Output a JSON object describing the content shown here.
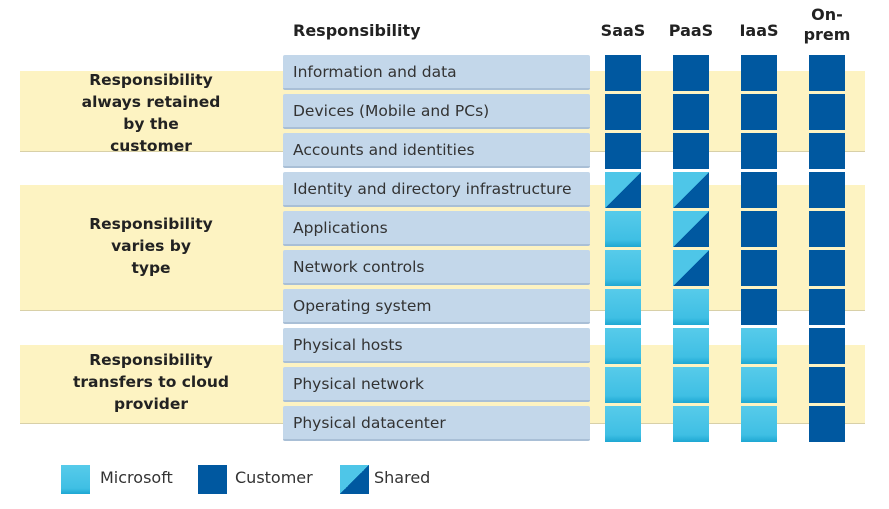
{
  "header": {
    "responsibility": "Responsibility",
    "columns": [
      "SaaS",
      "PaaS",
      "IaaS",
      "On-\nprem"
    ]
  },
  "bands": [
    {
      "label": "Responsibility always retained by the customer"
    },
    {
      "label": "Responsibility varies by type"
    },
    {
      "label": "Responsibility transfers to cloud provider"
    }
  ],
  "rows": [
    {
      "label": "Information and data",
      "cells": [
        "C",
        "C",
        "C",
        "C"
      ]
    },
    {
      "label": "Devices (Mobile and PCs)",
      "cells": [
        "C",
        "C",
        "C",
        "C"
      ]
    },
    {
      "label": "Accounts and identities",
      "cells": [
        "C",
        "C",
        "C",
        "C"
      ]
    },
    {
      "label": "Identity and directory infrastructure",
      "cells": [
        "S",
        "S",
        "C",
        "C"
      ]
    },
    {
      "label": "Applications",
      "cells": [
        "M",
        "S",
        "C",
        "C"
      ]
    },
    {
      "label": "Network controls",
      "cells": [
        "M",
        "S",
        "C",
        "C"
      ]
    },
    {
      "label": "Operating system",
      "cells": [
        "M",
        "M",
        "C",
        "C"
      ]
    },
    {
      "label": "Physical hosts",
      "cells": [
        "M",
        "M",
        "M",
        "C"
      ]
    },
    {
      "label": "Physical network",
      "cells": [
        "M",
        "M",
        "M",
        "C"
      ]
    },
    {
      "label": "Physical datacenter",
      "cells": [
        "M",
        "M",
        "M",
        "C"
      ]
    }
  ],
  "legend": {
    "microsoft": "Microsoft",
    "customer": "Customer",
    "shared": "Shared"
  },
  "colors": {
    "microsoft": "#4ec6e8",
    "customer": "#0058a0",
    "band": "#fdf3c2",
    "row": "#c3d7ea"
  }
}
